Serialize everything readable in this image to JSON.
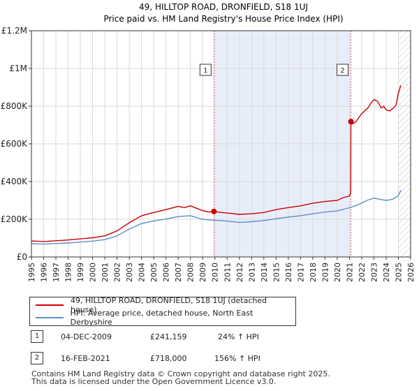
{
  "chart_data": {
    "type": "line",
    "title": "49, HILLTOP ROAD, DRONFIELD, S18 1UJ",
    "subtitle": "Price paid vs. HM Land Registry's House Price Index (HPI)",
    "x_ticks": [
      "1995",
      "1996",
      "1997",
      "1998",
      "1999",
      "2000",
      "2001",
      "2002",
      "2003",
      "2004",
      "2005",
      "2006",
      "2007",
      "2008",
      "2009",
      "2010",
      "2011",
      "2012",
      "2013",
      "2014",
      "2015",
      "2016",
      "2017",
      "2018",
      "2019",
      "2020",
      "2021",
      "2022",
      "2023",
      "2024",
      "2025",
      "2026"
    ],
    "y_ticks": [
      "£0",
      "£200K",
      "£400K",
      "£600K",
      "£800K",
      "£1M",
      "£1.2M"
    ],
    "xlim": [
      1995,
      2026
    ],
    "ylim": [
      0,
      1200000
    ],
    "highlight_span": [
      2009.92,
      2021.12
    ],
    "future_hatch_from": 2025.0,
    "series": [
      {
        "name": "49, HILLTOP ROAD, DRONFIELD, S18 1UJ (detached house)",
        "color": "#cc0000",
        "x": [
          1995.0,
          1996.0,
          1997.0,
          1998.0,
          1999.0,
          2000.0,
          2001.0,
          2002.0,
          2003.0,
          2004.0,
          2005.0,
          2006.0,
          2007.0,
          2007.5,
          2008.0,
          2008.5,
          2009.0,
          2009.5,
          2009.92,
          2010.5,
          2011.0,
          2012.0,
          2013.0,
          2014.0,
          2015.0,
          2016.0,
          2017.0,
          2018.0,
          2019.0,
          2020.0,
          2020.5,
          2021.0,
          2021.1,
          2021.12,
          2021.2,
          2021.5,
          2022.0,
          2022.5,
          2022.8,
          2023.0,
          2023.3,
          2023.6,
          2023.8,
          2024.0,
          2024.3,
          2024.6,
          2024.8,
          2025.0,
          2025.2
        ],
        "y": [
          85000,
          82000,
          86000,
          90000,
          96000,
          102000,
          112000,
          138000,
          182000,
          218000,
          236000,
          251000,
          268000,
          262000,
          271000,
          258000,
          246000,
          238000,
          241159,
          236000,
          233000,
          226000,
          229000,
          236000,
          251000,
          262000,
          271000,
          285000,
          294000,
          300000,
          315000,
          323000,
          340000,
          718000,
          705000,
          715000,
          760000,
          790000,
          820000,
          835000,
          825000,
          790000,
          800000,
          780000,
          775000,
          790000,
          805000,
          870000,
          910000
        ]
      },
      {
        "name": "HPI: Average price, detached house, North East Derbyshire",
        "color": "#5b8fc9",
        "x": [
          1995.0,
          1996.0,
          1997.0,
          1998.0,
          1999.0,
          2000.0,
          2001.0,
          2002.0,
          2003.0,
          2004.0,
          2005.0,
          2006.0,
          2007.0,
          2008.0,
          2009.0,
          2009.92,
          2010.5,
          2011.0,
          2012.0,
          2013.0,
          2014.0,
          2015.0,
          2016.0,
          2017.0,
          2018.0,
          2019.0,
          2020.0,
          2021.0,
          2021.5,
          2022.0,
          2022.5,
          2023.0,
          2023.5,
          2024.0,
          2024.5,
          2025.0,
          2025.2
        ],
        "y": [
          70000,
          68000,
          71000,
          74000,
          79000,
          84000,
          92000,
          112000,
          148000,
          177000,
          191000,
          201000,
          214000,
          219000,
          200000,
          195000,
          193000,
          190000,
          183000,
          187000,
          193000,
          203000,
          211000,
          219000,
          229000,
          238000,
          244000,
          261000,
          272000,
          286000,
          302000,
          312000,
          305000,
          300000,
          305000,
          325000,
          355000
        ]
      }
    ],
    "sales": [
      {
        "id": "1",
        "date": "04-DEC-2009",
        "price": "£241,159",
        "hpi": "24% ↑ HPI",
        "x": 2009.92,
        "y": 241159
      },
      {
        "id": "2",
        "date": "16-FEB-2021",
        "price": "£718,000",
        "hpi": "156% ↑ HPI",
        "x": 2021.12,
        "y": 718000
      }
    ],
    "footer": [
      "Contains HM Land Registry data © Crown copyright and database right 2025.",
      "This data is licensed under the Open Government Licence v3.0."
    ]
  }
}
